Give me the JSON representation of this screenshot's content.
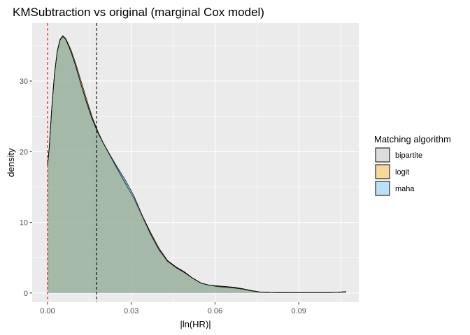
{
  "chart_data": {
    "type": "area",
    "title": "KMSubtraction vs original (marginal Cox model)",
    "xlabel": "|ln(HR)|",
    "ylabel": "density",
    "xlim": [
      -0.0055,
      0.1115
    ],
    "ylim": [
      -1.3,
      38.2
    ],
    "x_ticks": [
      0.0,
      0.03,
      0.06,
      0.09
    ],
    "x_tick_labels": [
      "0.00",
      "0.03",
      "0.06",
      "0.09"
    ],
    "y_ticks": [
      0,
      10,
      20,
      30
    ],
    "y_tick_labels": [
      "0",
      "10",
      "20",
      "30"
    ],
    "grid": true,
    "legend": {
      "title": "Matching algorithm",
      "position": "right",
      "entries": [
        {
          "label": "bipartite",
          "color": "#AAAAAA"
        },
        {
          "label": "logit",
          "color": "#E69F00"
        },
        {
          "label": "maha",
          "color": "#56B4E9"
        }
      ]
    },
    "vlines": [
      {
        "x": 0.0,
        "color": "#FF0000",
        "style": "dashed"
      },
      {
        "x": 0.0176,
        "color": "#000000",
        "style": "dashed"
      }
    ],
    "series": [
      {
        "name": "bipartite",
        "color": "#AAAAAA",
        "x": [
          0.0,
          0.0006,
          0.0015,
          0.0025,
          0.0035,
          0.0045,
          0.0055,
          0.0065,
          0.0075,
          0.0085,
          0.01,
          0.012,
          0.014,
          0.016,
          0.018,
          0.02,
          0.022,
          0.025,
          0.028,
          0.031,
          0.034,
          0.037,
          0.04,
          0.043,
          0.046,
          0.049,
          0.052,
          0.055,
          0.058,
          0.061,
          0.064,
          0.067,
          0.07,
          0.073,
          0.076,
          0.08,
          0.085,
          0.09,
          0.095,
          0.1,
          0.104,
          0.107
        ],
        "values": [
          18.0,
          20.5,
          26.0,
          31.0,
          34.2,
          35.8,
          36.3,
          35.9,
          35.0,
          34.0,
          32.2,
          29.5,
          27.0,
          24.7,
          22.8,
          21.2,
          19.8,
          17.6,
          15.5,
          13.3,
          10.7,
          8.2,
          6.0,
          4.5,
          3.7,
          3.0,
          2.1,
          1.4,
          1.1,
          1.0,
          0.9,
          0.8,
          0.6,
          0.35,
          0.15,
          0.08,
          0.05,
          0.05,
          0.05,
          0.05,
          0.1,
          0.2
        ]
      },
      {
        "name": "logit",
        "color": "#E69F00",
        "x": [
          0.0,
          0.0006,
          0.0015,
          0.0025,
          0.0035,
          0.0045,
          0.0055,
          0.0065,
          0.0075,
          0.0085,
          0.01,
          0.012,
          0.014,
          0.016,
          0.018,
          0.02,
          0.022,
          0.025,
          0.028,
          0.031,
          0.034,
          0.037,
          0.04,
          0.043,
          0.046,
          0.049,
          0.052,
          0.055,
          0.058,
          0.061,
          0.064,
          0.067,
          0.07,
          0.073,
          0.076,
          0.08,
          0.085,
          0.09,
          0.095,
          0.1,
          0.104,
          0.107
        ],
        "values": [
          18.0,
          20.4,
          26.0,
          31.0,
          34.3,
          35.9,
          36.4,
          36.0,
          35.2,
          34.3,
          32.6,
          30.0,
          27.4,
          24.9,
          22.9,
          21.2,
          19.7,
          17.5,
          15.4,
          13.4,
          10.9,
          8.5,
          6.3,
          4.6,
          3.7,
          3.0,
          2.1,
          1.4,
          1.1,
          1.0,
          0.9,
          0.8,
          0.6,
          0.35,
          0.15,
          0.08,
          0.05,
          0.05,
          0.05,
          0.05,
          0.1,
          0.2
        ]
      },
      {
        "name": "maha",
        "color": "#56B4E9",
        "x": [
          0.0,
          0.0006,
          0.0015,
          0.0025,
          0.0035,
          0.0045,
          0.0055,
          0.0065,
          0.0075,
          0.0085,
          0.01,
          0.012,
          0.014,
          0.016,
          0.018,
          0.02,
          0.022,
          0.025,
          0.028,
          0.031,
          0.034,
          0.037,
          0.04,
          0.043,
          0.046,
          0.049,
          0.052,
          0.055,
          0.058,
          0.061,
          0.064,
          0.067,
          0.07,
          0.073,
          0.076,
          0.08,
          0.085,
          0.09,
          0.095,
          0.1,
          0.104,
          0.107
        ],
        "values": [
          18.0,
          20.5,
          26.0,
          31.0,
          34.2,
          35.8,
          36.3,
          35.9,
          35.0,
          34.0,
          32.2,
          29.5,
          26.9,
          24.6,
          22.7,
          21.2,
          19.8,
          17.8,
          15.9,
          13.7,
          10.9,
          8.3,
          6.1,
          4.5,
          3.6,
          2.9,
          2.1,
          1.4,
          1.1,
          0.9,
          0.8,
          0.7,
          0.55,
          0.3,
          0.15,
          0.08,
          0.05,
          0.05,
          0.05,
          0.05,
          0.1,
          0.2
        ]
      }
    ]
  }
}
